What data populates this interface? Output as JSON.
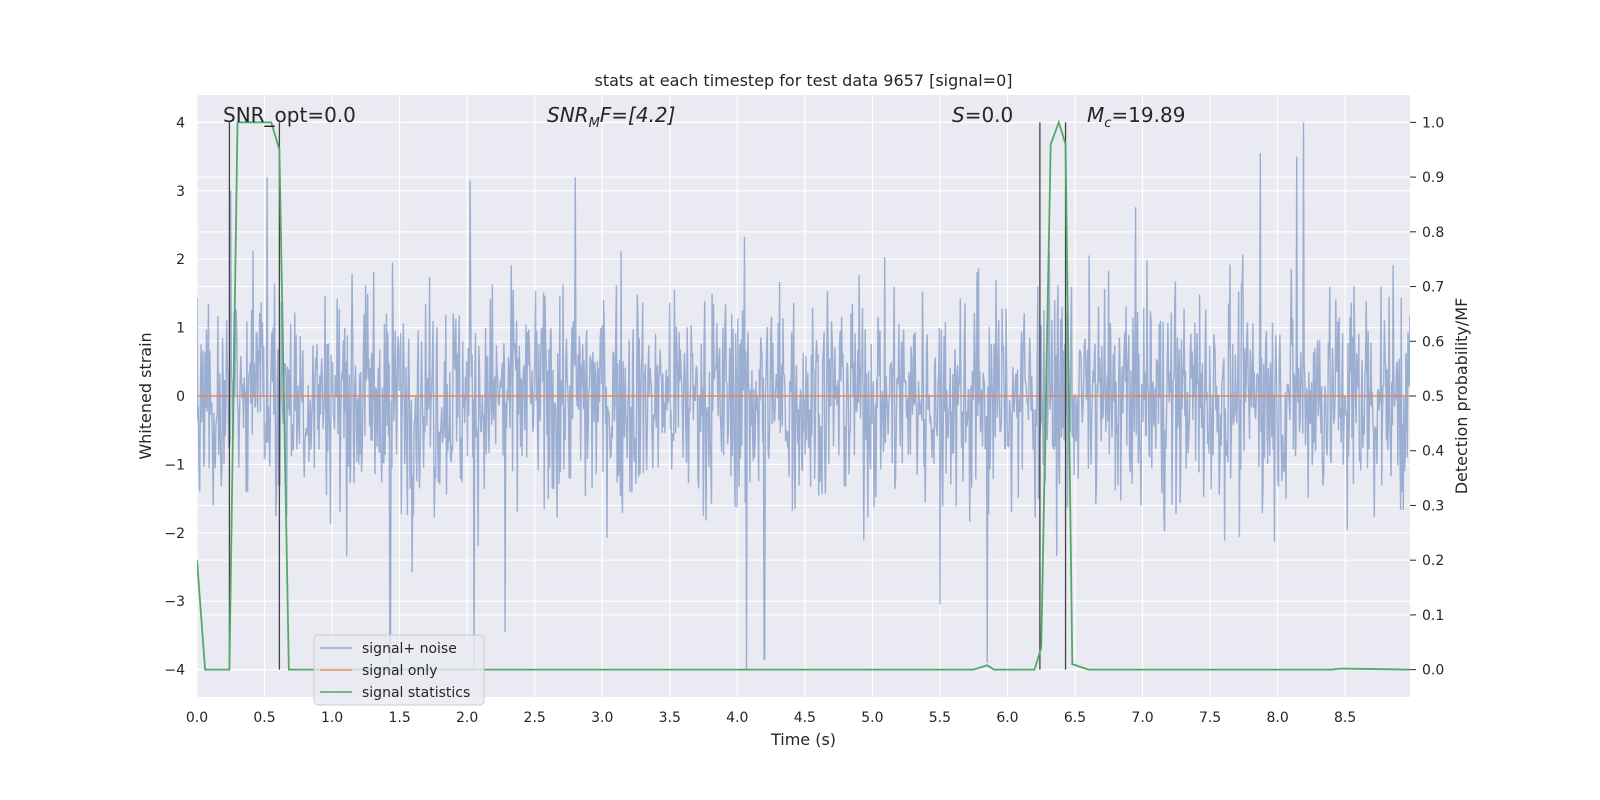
{
  "chart_data": {
    "type": "line",
    "title": "stats at each timestep for test data 9657 [signal=0]",
    "xlabel": "Time (s)",
    "ylabel": "Whitened strain",
    "ylabel_right": "Detection probability/MF",
    "xlim": [
      0.0,
      8.98
    ],
    "ylim_left": [
      -4.4,
      4.4
    ],
    "ylim_right": [
      -0.05,
      1.05
    ],
    "x_ticks": [
      "0.0",
      "0.5",
      "1.0",
      "1.5",
      "2.0",
      "2.5",
      "3.0",
      "3.5",
      "4.0",
      "4.5",
      "5.0",
      "5.5",
      "6.0",
      "6.5",
      "7.0",
      "7.5",
      "8.0",
      "8.5"
    ],
    "x_tick_values": [
      0.0,
      0.5,
      1.0,
      1.5,
      2.0,
      2.5,
      3.0,
      3.5,
      4.0,
      4.5,
      5.0,
      5.5,
      6.0,
      6.5,
      7.0,
      7.5,
      8.0,
      8.5
    ],
    "y_left_ticks": [
      "−4",
      "−3",
      "−2",
      "−1",
      "0",
      "1",
      "2",
      "3",
      "4"
    ],
    "y_left_tick_values": [
      -4,
      -3,
      -2,
      -1,
      0,
      1,
      2,
      3,
      4
    ],
    "y_right_ticks": [
      "0.0",
      "0.1",
      "0.2",
      "0.3",
      "0.4",
      "0.5",
      "0.6",
      "0.7",
      "0.8",
      "0.9",
      "1.0"
    ],
    "y_right_tick_values": [
      0.0,
      0.1,
      0.2,
      0.3,
      0.4,
      0.5,
      0.6,
      0.7,
      0.8,
      0.9,
      1.0
    ],
    "grid": true,
    "legend_position": "lower-left",
    "annotations": {
      "snr_opt": "SNR_opt=0.0",
      "snr_mf_label": "SNR",
      "snr_mf_sub": "M",
      "snr_mf_rest": "F=[4.2]",
      "s_label": "S",
      "s_rest": "=0.0",
      "mc_label": "M",
      "mc_sub": "c",
      "mc_rest": "=19.89"
    },
    "vertical_lines_x": [
      0.24,
      0.61,
      6.24,
      6.43
    ],
    "series": [
      {
        "name": "signal+ noise",
        "color": "#4c72b0",
        "axis": "left",
        "style": "noise",
        "envelope_upper_approx": 2.4,
        "envelope_lower_approx": -2.4,
        "peaks": [
          {
            "x": 0.25,
            "y": 3.0
          },
          {
            "x": 0.52,
            "y": 3.2
          },
          {
            "x": 2.02,
            "y": 3.15
          },
          {
            "x": 2.8,
            "y": 3.2
          },
          {
            "x": 8.19,
            "y": 4.0
          },
          {
            "x": 8.14,
            "y": 3.5
          },
          {
            "x": 7.87,
            "y": 3.55
          },
          {
            "x": 1.43,
            "y": -3.9
          },
          {
            "x": 2.05,
            "y": -4.0
          },
          {
            "x": 4.07,
            "y": -4.0
          },
          {
            "x": 4.2,
            "y": -3.85
          },
          {
            "x": 5.85,
            "y": -3.9
          },
          {
            "x": 5.5,
            "y": -3.05
          },
          {
            "x": 2.28,
            "y": -3.45
          }
        ]
      },
      {
        "name": "signal only",
        "color": "#dd8452",
        "axis": "left",
        "style": "line",
        "x": [
          0.0,
          8.98
        ],
        "y": [
          0.0,
          0.0
        ]
      },
      {
        "name": "signal statistics",
        "color": "#55a868",
        "axis": "right",
        "style": "line",
        "x": [
          0.0,
          0.06,
          0.24,
          0.3,
          0.55,
          0.61,
          0.68,
          5.75,
          5.85,
          5.9,
          6.2,
          6.25,
          6.32,
          6.38,
          6.43,
          6.48,
          6.6,
          8.4,
          8.47,
          8.98
        ],
        "y": [
          0.2,
          0.0,
          0.0,
          1.0,
          1.0,
          0.95,
          0.0,
          0.0,
          0.008,
          0.0,
          0.0,
          0.04,
          0.96,
          1.0,
          0.96,
          0.01,
          0.0,
          0.0,
          0.002,
          0.0
        ]
      }
    ]
  }
}
